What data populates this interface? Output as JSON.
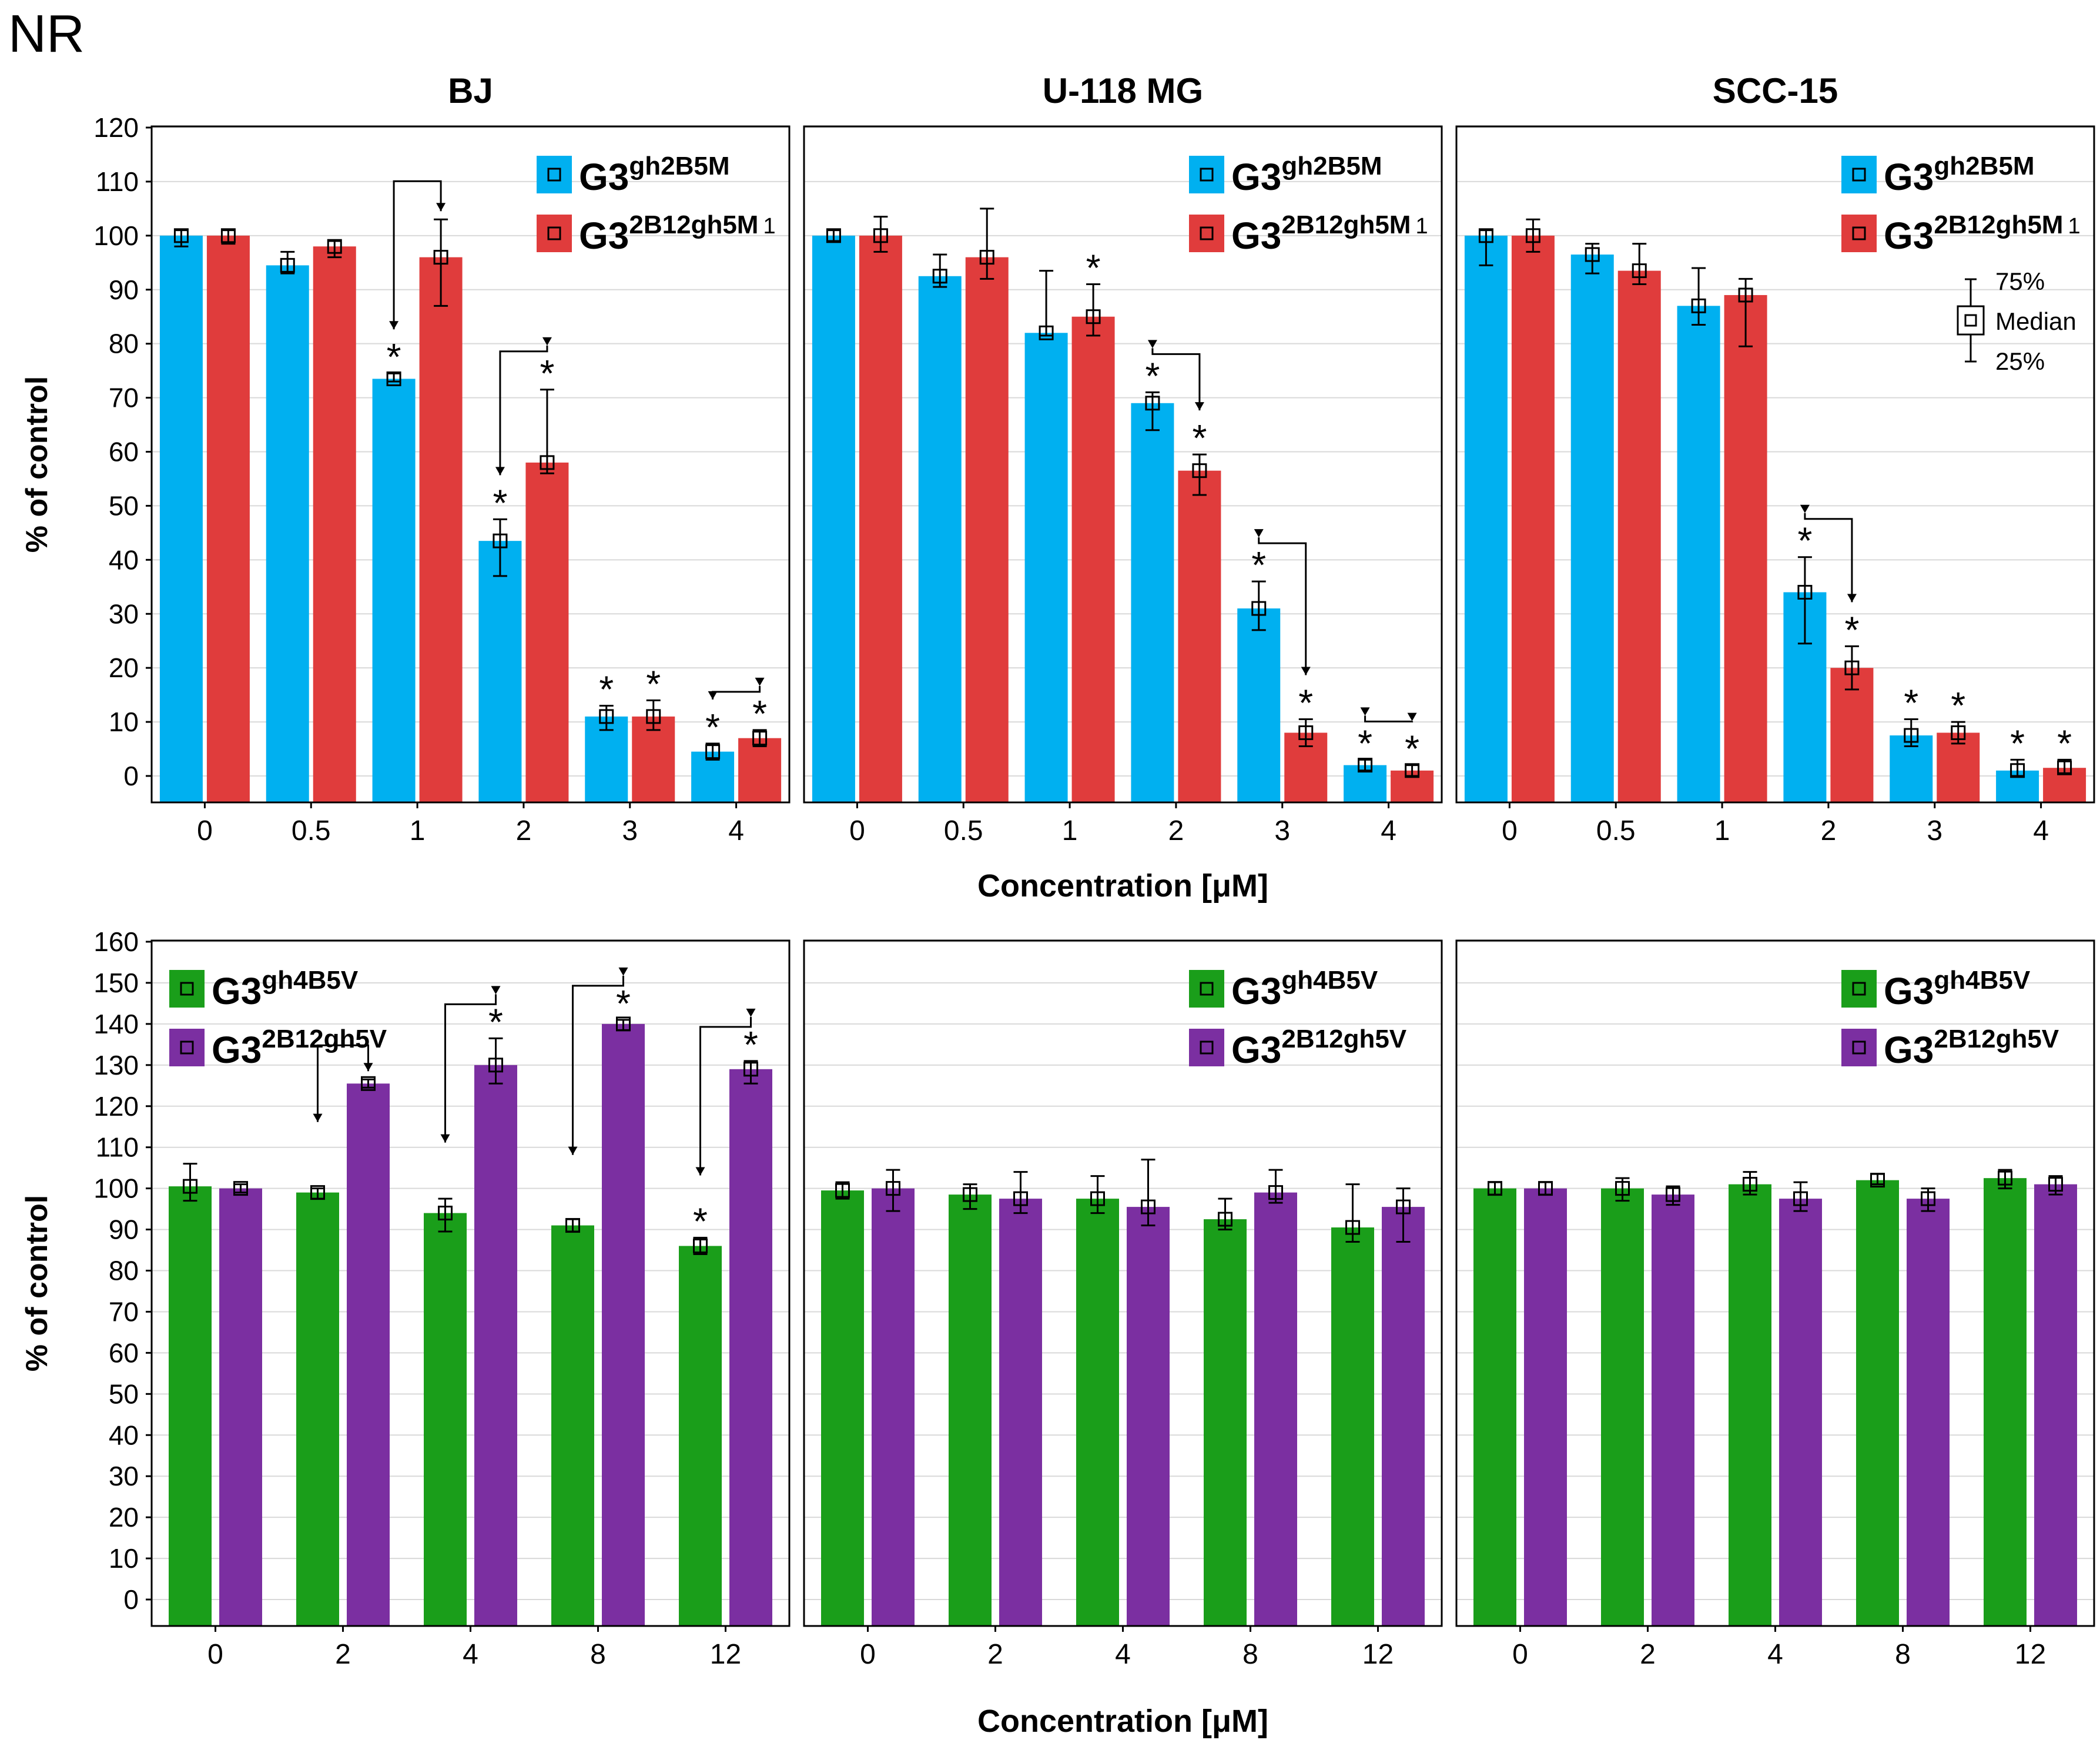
{
  "figure_label": "NR",
  "chart_data": [
    {
      "type": "bar",
      "row": "top",
      "panel": "BJ",
      "title": "BJ",
      "categories": [
        "0",
        "0.5",
        "1",
        "2",
        "3",
        "4"
      ],
      "ylabel": "% of control",
      "xlabel": "Concentration [μM]",
      "ylim": [
        0,
        120
      ],
      "yticks": [
        0,
        10,
        20,
        30,
        40,
        50,
        60,
        70,
        80,
        90,
        100,
        110,
        120
      ],
      "legend_position": "top-right",
      "legend": [
        {
          "base": "G3",
          "sup": "gh2B5M",
          "color": "#00b0f0"
        },
        {
          "base": "G3",
          "sup": "2B12gh5M",
          "tail": "1",
          "color": "#e03c3c"
        }
      ],
      "series": [
        {
          "name": "G3gh2B5M",
          "color": "#00b0f0",
          "values": [
            100,
            94.5,
            73.5,
            43.5,
            11,
            4.5
          ],
          "q25": [
            98,
            93,
            73,
            37,
            8.5,
            3
          ],
          "q75": [
            101,
            97,
            74.5,
            47.5,
            13,
            6
          ],
          "stars": [
            false,
            false,
            true,
            true,
            true,
            true
          ]
        },
        {
          "name": "G3 2B12gh5M 1",
          "color": "#e03c3c",
          "values": [
            100,
            98,
            96,
            58,
            11,
            7
          ],
          "q25": [
            98.5,
            96,
            87,
            56,
            8.5,
            5.5
          ],
          "q75": [
            101,
            99,
            103,
            71.5,
            14,
            8.5
          ],
          "stars": [
            false,
            false,
            false,
            true,
            true,
            true
          ]
        }
      ],
      "arrows": [
        2,
        3,
        5
      ]
    },
    {
      "type": "bar",
      "row": "top",
      "panel": "U-118 MG",
      "title": "U-118 MG",
      "categories": [
        "0",
        "0.5",
        "1",
        "2",
        "3",
        "4"
      ],
      "ylim": [
        0,
        120
      ],
      "legend_position": "top-right",
      "legend": [
        {
          "base": "G3",
          "sup": "gh2B5M",
          "color": "#00b0f0"
        },
        {
          "base": "G3",
          "sup": "2B12gh5M",
          "tail": "1",
          "color": "#e03c3c"
        }
      ],
      "series": [
        {
          "name": "G3gh2B5M",
          "color": "#00b0f0",
          "values": [
            100,
            92.5,
            82,
            69,
            31,
            2
          ],
          "q25": [
            99,
            90.5,
            81.5,
            64,
            27,
            1
          ],
          "q75": [
            101,
            96.5,
            93.5,
            71,
            36,
            3
          ],
          "stars": [
            false,
            false,
            false,
            true,
            true,
            true
          ]
        },
        {
          "name": "G3 2B12gh5M 1",
          "color": "#e03c3c",
          "values": [
            100,
            96,
            85,
            56.5,
            8,
            1
          ],
          "q25": [
            97,
            92,
            81.5,
            52,
            5.5,
            0
          ],
          "q75": [
            103.5,
            105,
            91,
            59.5,
            10.5,
            2
          ],
          "stars": [
            false,
            false,
            true,
            true,
            true,
            true
          ]
        }
      ],
      "arrows": [
        3,
        4,
        5
      ]
    },
    {
      "type": "bar",
      "row": "top",
      "panel": "SCC-15",
      "title": "SCC-15",
      "categories": [
        "0",
        "0.5",
        "1",
        "2",
        "3",
        "4"
      ],
      "ylim": [
        0,
        120
      ],
      "legend_position": "top-right",
      "legend": [
        {
          "base": "G3",
          "sup": "gh2B5M",
          "color": "#00b0f0"
        },
        {
          "base": "G3",
          "sup": "2B12gh5M",
          "tail": "1",
          "color": "#e03c3c"
        }
      ],
      "box_key": {
        "top": "75%",
        "mid": "Median",
        "bottom": "25%"
      },
      "series": [
        {
          "name": "G3gh2B5M",
          "color": "#00b0f0",
          "values": [
            100,
            96.5,
            87,
            34,
            7.5,
            1
          ],
          "q25": [
            94.5,
            93,
            83.5,
            24.5,
            5.5,
            0
          ],
          "q75": [
            101,
            98.5,
            94,
            40.5,
            10.5,
            3
          ],
          "stars": [
            false,
            false,
            false,
            true,
            true,
            true
          ]
        },
        {
          "name": "G3 2B12gh5M 1",
          "color": "#e03c3c",
          "values": [
            100,
            93.5,
            89,
            20,
            8,
            1.5
          ],
          "q25": [
            97,
            91,
            79.5,
            16,
            6,
            0.5
          ],
          "q75": [
            103,
            98.5,
            92,
            24,
            10,
            3
          ],
          "stars": [
            false,
            false,
            false,
            true,
            true,
            true
          ]
        }
      ],
      "arrows": [
        3
      ]
    },
    {
      "type": "bar",
      "row": "bottom",
      "panel": "BJ",
      "categories": [
        "0",
        "2",
        "4",
        "8",
        "12"
      ],
      "ylabel": "% of control",
      "xlabel": "Concentration [μM]",
      "ylim": [
        0,
        160
      ],
      "yticks": [
        0,
        10,
        20,
        30,
        40,
        50,
        60,
        70,
        80,
        90,
        100,
        110,
        120,
        130,
        140,
        150,
        160
      ],
      "legend_position": "top-left",
      "legend": [
        {
          "base": "G3",
          "sup": "gh4B5V",
          "color": "#1a9e1a"
        },
        {
          "base": "G3",
          "sup": "2B12gh5V",
          "color": "#7b2fa1"
        }
      ],
      "series": [
        {
          "name": "G3gh4B5V",
          "color": "#1a9e1a",
          "values": [
            100.5,
            99,
            94,
            91,
            86
          ],
          "q25": [
            97,
            97.5,
            89.5,
            89.5,
            84
          ],
          "q75": [
            106,
            100,
            97.5,
            92.5,
            88
          ],
          "stars": [
            false,
            false,
            false,
            false,
            true
          ]
        },
        {
          "name": "G3 2B12gh5V",
          "color": "#7b2fa1",
          "values": [
            100,
            125.5,
            130,
            140,
            129
          ],
          "q25": [
            99,
            124.5,
            125.5,
            138.5,
            125.5
          ],
          "q75": [
            101,
            126.5,
            136.5,
            141,
            131
          ],
          "stars": [
            false,
            false,
            true,
            true,
            true
          ]
        }
      ],
      "arrows": [
        1,
        2,
        3,
        4
      ]
    },
    {
      "type": "bar",
      "row": "bottom",
      "panel": "U-118 MG",
      "categories": [
        "0",
        "2",
        "4",
        "8",
        "12"
      ],
      "ylim": [
        0,
        160
      ],
      "legend_position": "top-right",
      "legend": [
        {
          "base": "G3",
          "sup": "gh4B5V",
          "color": "#1a9e1a"
        },
        {
          "base": "G3",
          "sup": "2B12gh5V",
          "color": "#7b2fa1"
        }
      ],
      "series": [
        {
          "name": "G3gh4B5V",
          "color": "#1a9e1a",
          "values": [
            99.5,
            98.5,
            97.5,
            92.5,
            90.5
          ],
          "q25": [
            97.5,
            95,
            94,
            90,
            87
          ],
          "q75": [
            101.5,
            101,
            103,
            97.5,
            101
          ],
          "stars": [
            false,
            false,
            false,
            false,
            false
          ]
        },
        {
          "name": "G3 2B12gh5V",
          "color": "#7b2fa1",
          "values": [
            100,
            97.5,
            95.5,
            99,
            95.5
          ],
          "q25": [
            94.5,
            94,
            91,
            96.5,
            87
          ],
          "q75": [
            104.5,
            104,
            107,
            104.5,
            100
          ],
          "stars": [
            false,
            false,
            false,
            false,
            false
          ]
        }
      ],
      "arrows": []
    },
    {
      "type": "bar",
      "row": "bottom",
      "panel": "SCC-15",
      "categories": [
        "0",
        "2",
        "4",
        "8",
        "12"
      ],
      "ylim": [
        0,
        160
      ],
      "legend_position": "top-right",
      "legend": [
        {
          "base": "G3",
          "sup": "gh4B5V",
          "color": "#1a9e1a"
        },
        {
          "base": "G3",
          "sup": "2B12gh5V",
          "color": "#7b2fa1"
        }
      ],
      "series": [
        {
          "name": "G3gh4B5V",
          "color": "#1a9e1a",
          "values": [
            100,
            100,
            101,
            102,
            102.5
          ],
          "q25": [
            98.5,
            97,
            98.5,
            101,
            100
          ],
          "q75": [
            101.5,
            102.5,
            104,
            103.5,
            104.5
          ],
          "stars": [
            false,
            false,
            false,
            false,
            false
          ]
        },
        {
          "name": "G3 2B12gh5V",
          "color": "#7b2fa1",
          "values": [
            100,
            98.5,
            97.5,
            97.5,
            101
          ],
          "q25": [
            98.5,
            96,
            94.5,
            94.5,
            98.5
          ],
          "q75": [
            101.5,
            100.5,
            101.5,
            100,
            103
          ],
          "stars": [
            false,
            false,
            false,
            false,
            false
          ]
        }
      ],
      "arrows": []
    }
  ]
}
